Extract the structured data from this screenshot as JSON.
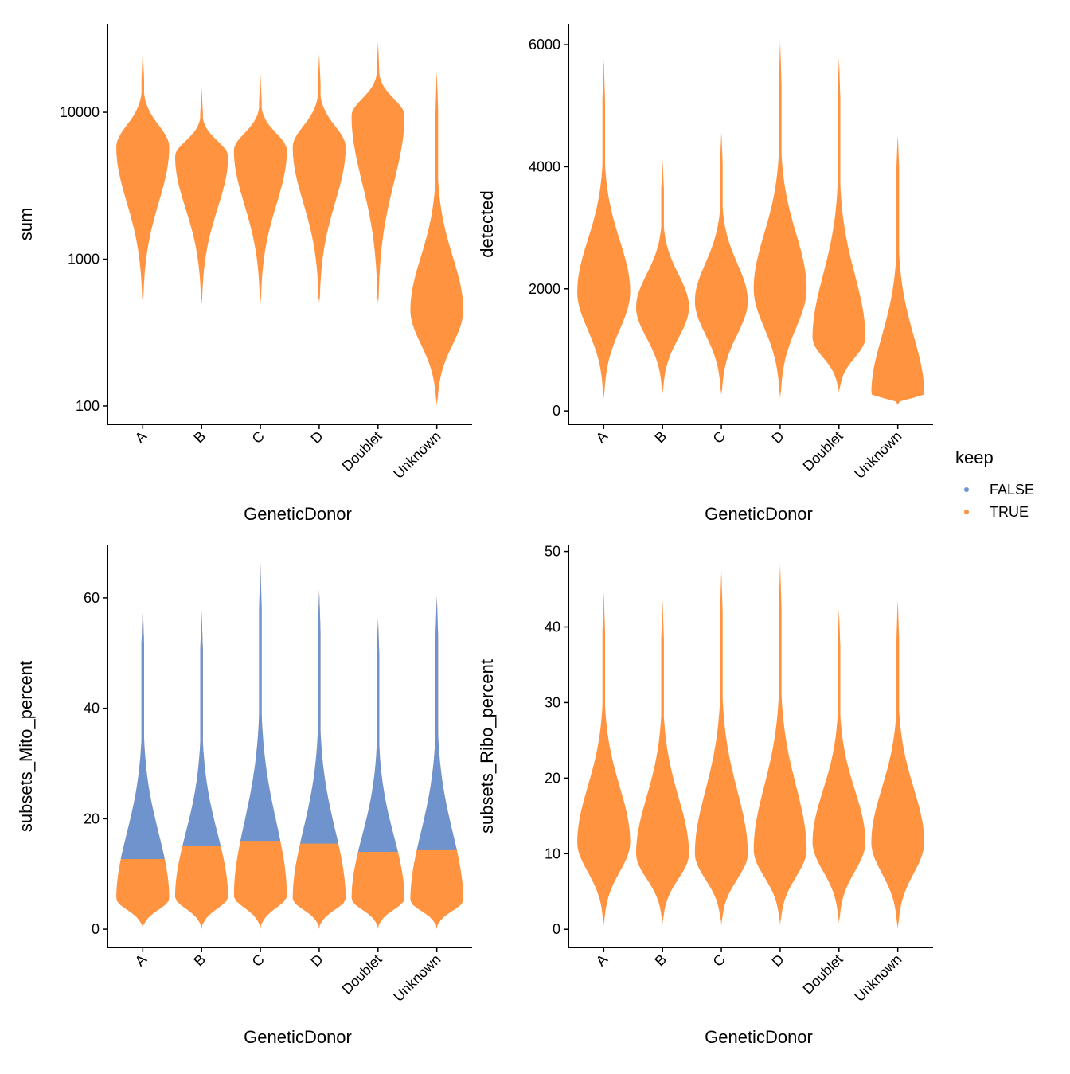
{
  "chart_data": [
    {
      "type": "violin",
      "x_label": "GeneticDonor",
      "y_label": "sum",
      "log_scale": true,
      "categories": [
        "A",
        "B",
        "C",
        "D",
        "Doublet",
        "Unknown"
      ],
      "min": [
        500,
        500,
        500,
        500,
        500,
        100
      ],
      "max": [
        27000,
        15000,
        18500,
        25500,
        31000,
        19500
      ],
      "mode": [
        5800,
        5000,
        5500,
        5800,
        9500,
        450
      ],
      "ylim": [
        75,
        40000
      ],
      "yticks": [
        100,
        1000,
        10000
      ]
    },
    {
      "type": "violin",
      "x_label": "GeneticDonor",
      "y_label": "detected",
      "log_scale": false,
      "categories": [
        "A",
        "B",
        "C",
        "D",
        "Doublet",
        "Unknown"
      ],
      "min": [
        200,
        280,
        260,
        200,
        290,
        100
      ],
      "max": [
        5780,
        4120,
        4580,
        6080,
        5820,
        4540
      ],
      "mode": [
        1950,
        1700,
        1800,
        2000,
        1200,
        280
      ],
      "ylim": [
        -220,
        6340
      ],
      "yticks": [
        0,
        2000,
        4000,
        6000
      ]
    },
    {
      "type": "violin",
      "x_label": "GeneticDonor",
      "y_label": "subsets_Mito_percent",
      "log_scale": false,
      "categories": [
        "A",
        "B",
        "C",
        "D",
        "Doublet",
        "Unknown"
      ],
      "min": [
        0,
        0,
        0,
        0,
        0,
        0
      ],
      "max": [
        58.8,
        57.8,
        66.3,
        61.6,
        56.5,
        60.5
      ],
      "mode": [
        5.5,
        5.8,
        6,
        5.5,
        5.5,
        5.2
      ],
      "upper_cutoff": [
        12.7,
        15,
        16,
        15.5,
        14,
        14.3
      ],
      "ylim": [
        -3.3,
        69.5
      ],
      "yticks": [
        0,
        20,
        40,
        60
      ]
    },
    {
      "type": "violin",
      "x_label": "GeneticDonor",
      "y_label": "subsets_Ribo_percent",
      "log_scale": false,
      "categories": [
        "A",
        "B",
        "C",
        "D",
        "Doublet",
        "Unknown"
      ],
      "min": [
        0.5,
        0.7,
        0.5,
        0.5,
        0.8,
        0
      ],
      "max": [
        44.8,
        43.8,
        47.6,
        48.5,
        42.6,
        43.8
      ],
      "mode": [
        11.5,
        10,
        10,
        10.5,
        11.5,
        11.5
      ],
      "ylim": [
        -2.4,
        50.8
      ],
      "yticks": [
        0,
        10,
        20,
        30,
        40,
        50
      ]
    }
  ],
  "legend": {
    "title": "keep",
    "series": [
      {
        "name": "FALSE",
        "color": "#6f94cd"
      },
      {
        "name": "TRUE",
        "color": "#ff9340"
      }
    ]
  }
}
